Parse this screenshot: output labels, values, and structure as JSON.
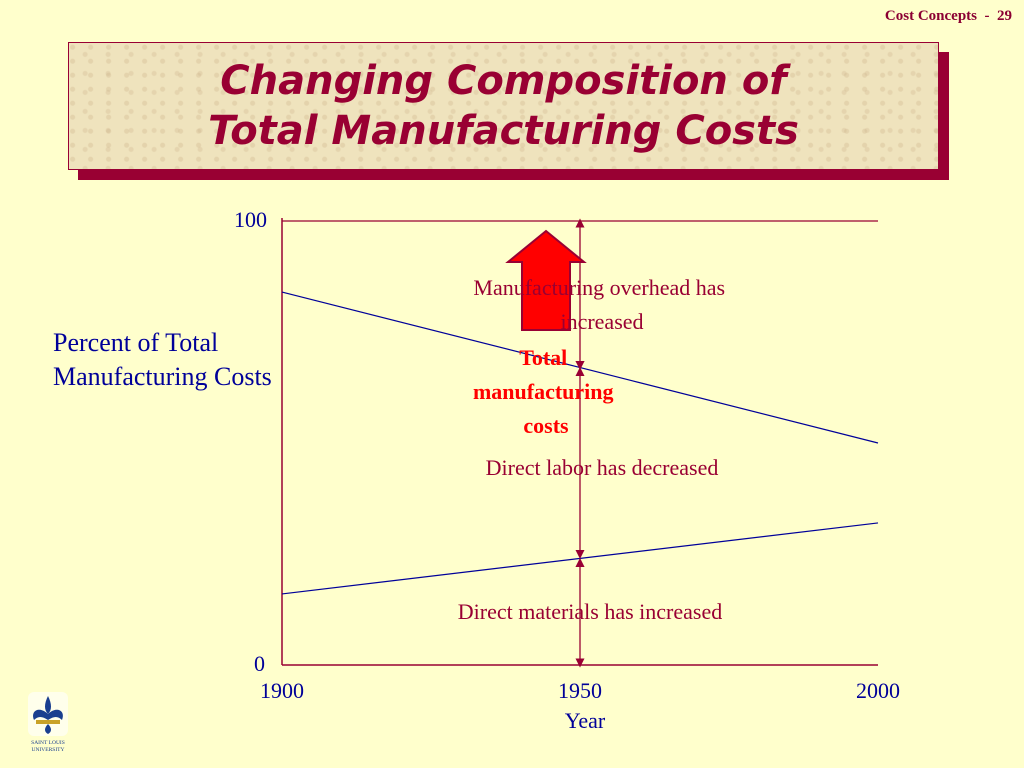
{
  "header": {
    "label": "Cost Concepts  -  29"
  },
  "title": {
    "line1": "Changing Composition of",
    "line2": "Total Manufacturing Costs"
  },
  "colors": {
    "title": "#990033",
    "axis_text": "#000099",
    "annotation": "#990033",
    "emphasis": "#ff0000",
    "background": "#ffffcc"
  },
  "logo": {
    "icon": "saint-louis-university-fleur-de-lis-logo",
    "text_line1": "SAINT LOUIS",
    "text_line2": "UNIVERSITY"
  },
  "chart_data": {
    "type": "line",
    "ylabel": "Percent of Total Manufacturing Costs",
    "xlabel": "Year",
    "x_ticks": [
      "1900",
      "1950",
      "2000"
    ],
    "y_ticks": [
      "0",
      "100"
    ],
    "xlim": [
      1900,
      2000
    ],
    "ylim": [
      0,
      100
    ],
    "gridline_at_y": 100,
    "boundaries": [
      {
        "x": [
          1900,
          2000
        ],
        "y": [
          16,
          32
        ]
      },
      {
        "x": [
          1900,
          2000
        ],
        "y": [
          84,
          50
        ]
      }
    ],
    "annotations": {
      "overhead": "Manufacturing overhead has increased",
      "total_line1": "Total",
      "total_line2": "manufacturing",
      "total_line3": "costs",
      "labor": "Direct labor has decreased",
      "materials": "Direct materials has increased"
    },
    "marker_year": 1950,
    "up_arrow": "up-arrow-icon"
  }
}
